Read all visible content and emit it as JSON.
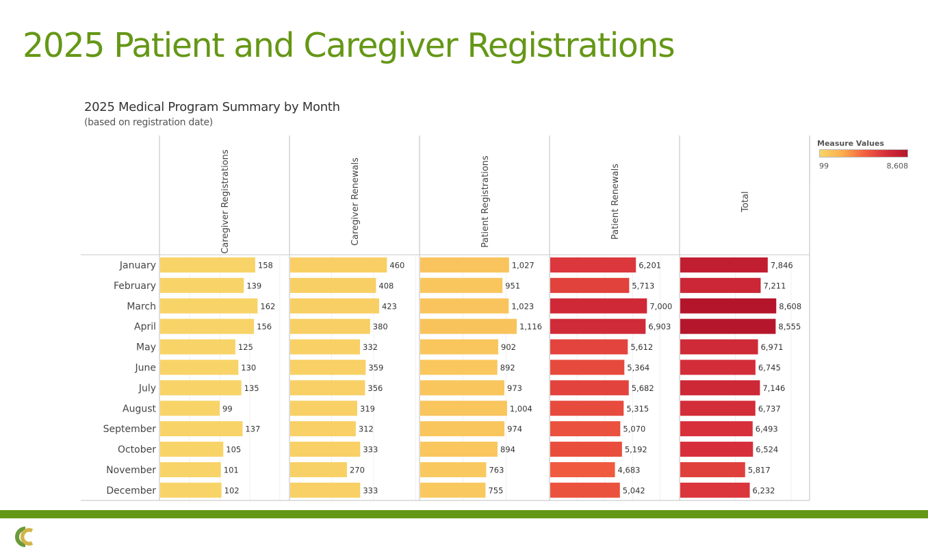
{
  "slide": {
    "title": "2025 Patient and Caregiver Registrations",
    "accent_color": "#659716",
    "logo": "brand-logo-icon"
  },
  "chart_data": {
    "type": "bar",
    "orientation": "horizontal",
    "title": "2025 Medical Program Summary by Month",
    "subtitle": "(based on registration date)",
    "categories": [
      "January",
      "February",
      "March",
      "April",
      "May",
      "June",
      "July",
      "August",
      "September",
      "October",
      "November",
      "December"
    ],
    "series": [
      {
        "name": "Caregiver Registrations",
        "axis_max": 215,
        "grid_step": 50,
        "values": [
          158,
          139,
          162,
          156,
          125,
          130,
          135,
          99,
          137,
          105,
          101,
          102
        ]
      },
      {
        "name": "Caregiver Renewals",
        "axis_max": 615,
        "grid_step": 200,
        "values": [
          460,
          408,
          423,
          380,
          332,
          359,
          356,
          319,
          312,
          333,
          270,
          333
        ]
      },
      {
        "name": "Patient Registrations",
        "axis_max": 1495,
        "grid_step": 500,
        "values": [
          1027,
          951,
          1023,
          1116,
          902,
          892,
          973,
          1004,
          974,
          894,
          763,
          755
        ]
      },
      {
        "name": "Patient Renewals",
        "axis_max": 9360,
        "grid_step": 2000,
        "values": [
          6201,
          5713,
          7000,
          6903,
          5612,
          5364,
          5682,
          5315,
          5070,
          5192,
          4683,
          5042
        ]
      },
      {
        "name": "Total",
        "axis_max": 11600,
        "grid_step": 5000,
        "values": [
          7846,
          7211,
          8608,
          8555,
          6971,
          6745,
          7146,
          6737,
          6493,
          6524,
          5817,
          6232
        ]
      }
    ],
    "legend": {
      "title": "Measure Values",
      "min_label": "99",
      "max_label": "8,608",
      "min": 99,
      "max": 8608,
      "colors": [
        "#f8d468",
        "#fbb04e",
        "#f4623f",
        "#d7303b",
        "#b5152b"
      ],
      "placement": "top-right"
    },
    "xlabel": "",
    "ylabel": "",
    "grid": true
  }
}
